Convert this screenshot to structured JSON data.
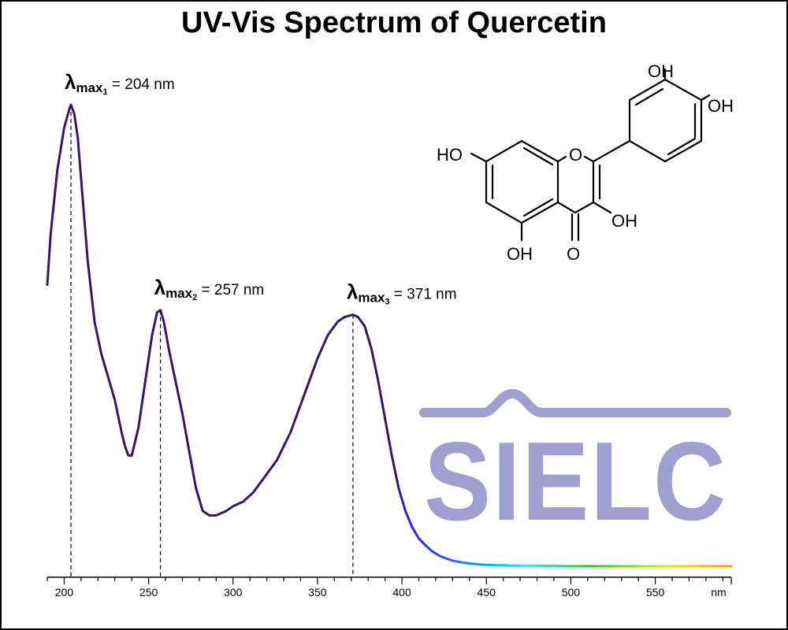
{
  "title": "UV-Vis Spectrum of Quercetin",
  "colors": {
    "curve": "#3a1560",
    "logo": "#a09fcf",
    "axis": "#000000"
  },
  "annotations": [
    {
      "symbol": "λ",
      "sub": "max",
      "index": "1",
      "text": " = 204 nm",
      "wavelength": 204
    },
    {
      "symbol": "λ",
      "sub": "max",
      "index": "2",
      "text": " = 257 nm",
      "wavelength": 257
    },
    {
      "symbol": "λ",
      "sub": "max",
      "index": "3",
      "text": " = 371 nm",
      "wavelength": 371
    }
  ],
  "structure_labels": {
    "oh_top": "OH",
    "oh_right": "OH",
    "ho_left": "HO",
    "o_ring": "O",
    "oh_mid": "OH",
    "oh_bottom": "OH",
    "o_carbonyl": "O"
  },
  "logo": {
    "text": "SIELC"
  },
  "chart_data": {
    "type": "line",
    "title": "UV-Vis Spectrum of Quercetin",
    "xlabel": "nm",
    "ylabel": "",
    "xlim": [
      190,
      595
    ],
    "ylim": [
      0,
      1.0
    ],
    "x_ticks": [
      200,
      250,
      300,
      350,
      400,
      450,
      500,
      550
    ],
    "x_tick_labels": [
      "200",
      "250",
      "300",
      "350",
      "400",
      "450",
      "500",
      "550"
    ],
    "grid": false,
    "series": [
      {
        "x": [
          190,
          192,
          196,
          200,
          203,
          204,
          206,
          208,
          210,
          214,
          218,
          222,
          226,
          230,
          234,
          236,
          238,
          240,
          244,
          248,
          252,
          255,
          257,
          259,
          262,
          266,
          270,
          274,
          278,
          282,
          286,
          290,
          296,
          300,
          306,
          312,
          318,
          326,
          334,
          342,
          350,
          356,
          362,
          366,
          368,
          371,
          374,
          378,
          382,
          386,
          390,
          394,
          398,
          402,
          406,
          410,
          414,
          418,
          422,
          426,
          430,
          436,
          440,
          446,
          450,
          456,
          460,
          466,
          470,
          480,
          500,
          520,
          540,
          560,
          580,
          595
        ],
        "y": [
          0.61,
          0.72,
          0.86,
          0.95,
          0.99,
          1.0,
          0.98,
          0.93,
          0.84,
          0.66,
          0.53,
          0.46,
          0.41,
          0.36,
          0.29,
          0.26,
          0.24,
          0.24,
          0.3,
          0.4,
          0.5,
          0.55,
          0.555,
          0.53,
          0.47,
          0.4,
          0.33,
          0.25,
          0.17,
          0.12,
          0.11,
          0.11,
          0.12,
          0.13,
          0.14,
          0.16,
          0.19,
          0.23,
          0.29,
          0.37,
          0.45,
          0.5,
          0.53,
          0.54,
          0.542,
          0.545,
          0.54,
          0.52,
          0.47,
          0.4,
          0.32,
          0.24,
          0.17,
          0.12,
          0.085,
          0.06,
          0.045,
          0.032,
          0.023,
          0.017,
          0.012,
          0.008,
          0.006,
          0.004,
          0.003,
          0.002,
          0.002,
          0.001,
          0.001,
          0.001,
          0.0,
          0.0,
          0.0,
          0.0,
          0.0,
          0.0
        ]
      }
    ]
  }
}
